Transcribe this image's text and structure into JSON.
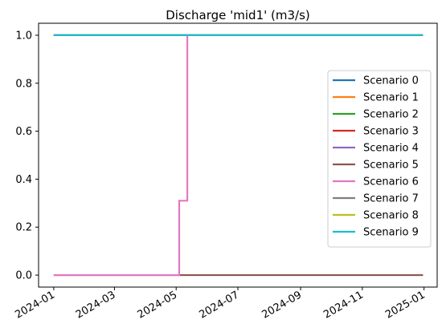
{
  "chart_data": {
    "type": "line",
    "title": "Discharge 'mid1' (m3/s)",
    "xlabel": "",
    "ylabel": "",
    "x_range": [
      "2023-12-17",
      "2025-01-14"
    ],
    "ylim": [
      -0.05,
      1.05
    ],
    "x_ticks": [
      "2024-01",
      "2024-03",
      "2024-05",
      "2024-07",
      "2024-09",
      "2024-11",
      "2025-01"
    ],
    "y_ticks": [
      "0.0",
      "0.2",
      "0.4",
      "0.6",
      "0.8",
      "1.0"
    ],
    "grid": false,
    "legend_position": "center-right",
    "series": [
      {
        "name": "Scenario 0",
        "color": "#1f77b4",
        "x": [
          "2024-01-01",
          "2024-12-31"
        ],
        "y": [
          1.0,
          1.0
        ]
      },
      {
        "name": "Scenario 1",
        "color": "#ff7f0e",
        "x": [
          "2024-01-01",
          "2024-12-31"
        ],
        "y": [
          1.0,
          1.0
        ]
      },
      {
        "name": "Scenario 2",
        "color": "#2ca02c",
        "x": [
          "2024-01-01",
          "2024-12-31"
        ],
        "y": [
          1.0,
          1.0
        ]
      },
      {
        "name": "Scenario 3",
        "color": "#d62728",
        "x": [
          "2024-01-01",
          "2024-12-31"
        ],
        "y": [
          1.0,
          1.0
        ]
      },
      {
        "name": "Scenario 4",
        "color": "#9467bd",
        "x": [
          "2024-01-01",
          "2024-12-31"
        ],
        "y": [
          1.0,
          1.0
        ]
      },
      {
        "name": "Scenario 5",
        "color": "#8c564b",
        "x": [
          "2024-01-01",
          "2024-12-31"
        ],
        "y": [
          0.0,
          0.0
        ]
      },
      {
        "name": "Scenario 6",
        "color": "#e377c2",
        "x": [
          "2024-01-01",
          "2024-05-04",
          "2024-05-04",
          "2024-05-12",
          "2024-05-12",
          "2024-12-31"
        ],
        "y": [
          0.0,
          0.0,
          0.31,
          0.31,
          1.0,
          1.0
        ]
      },
      {
        "name": "Scenario 7",
        "color": "#7f7f7f",
        "x": [
          "2024-01-01",
          "2024-12-31"
        ],
        "y": [
          1.0,
          1.0
        ]
      },
      {
        "name": "Scenario 8",
        "color": "#bcbd22",
        "x": [
          "2024-01-01",
          "2024-12-31"
        ],
        "y": [
          1.0,
          1.0
        ]
      },
      {
        "name": "Scenario 9",
        "color": "#17becf",
        "x": [
          "2024-01-01",
          "2024-12-31"
        ],
        "y": [
          1.0,
          1.0
        ]
      }
    ]
  }
}
